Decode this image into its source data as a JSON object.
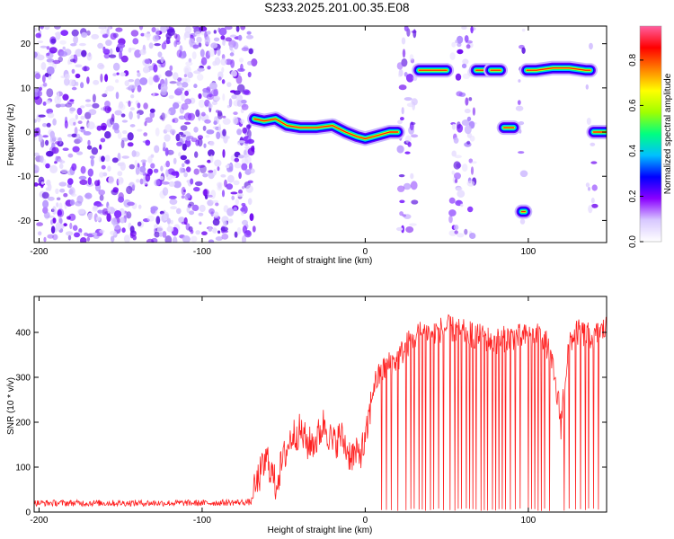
{
  "title": "S233.2025.201.00.35.E08",
  "chart_data": [
    {
      "type": "heatmap",
      "xlabel": "Height of straight line (km)",
      "ylabel": "Frequency (Hz)",
      "xlim": [
        -203,
        148
      ],
      "ylim": [
        -25,
        24
      ],
      "xticks": [
        -200,
        -100,
        0,
        100
      ],
      "yticks": [
        -20,
        -10,
        0,
        10,
        20
      ],
      "colorbar": {
        "label": "Normalized spectral amplitude",
        "ticks": [
          0.0,
          0.2,
          0.4,
          0.6,
          0.8
        ],
        "range": [
          0,
          0.95
        ],
        "colors": [
          "#ffffff",
          "#d8c8ff",
          "#8a00ff",
          "#0000ff",
          "#00c0ff",
          "#00ff80",
          "#a0ff00",
          "#ffff00",
          "#ff8000",
          "#ff0000",
          "#ff60a0"
        ]
      },
      "noise_regions": [
        {
          "x": [
            -203,
            -68
          ],
          "density": 0.9
        },
        {
          "x": [
            21,
            31
          ],
          "density": 0.6
        },
        {
          "x": [
            52,
            67
          ],
          "density": 0.6
        },
        {
          "x": [
            94,
            99
          ],
          "density": 0.3
        },
        {
          "x": [
            136,
            141
          ],
          "density": 0.3
        }
      ],
      "tracks": [
        {
          "x": [
            -68,
            -62,
            -55,
            -48,
            -40,
            -30,
            -20,
            -12,
            -5,
            0,
            5,
            10,
            15,
            20
          ],
          "y": [
            3,
            2.5,
            3,
            1.5,
            1,
            1,
            1.5,
            0,
            -1,
            -1.5,
            -1,
            -0.5,
            0,
            0
          ]
        },
        {
          "x": [
            33,
            36,
            40,
            45,
            50
          ],
          "y": [
            14,
            14,
            14,
            14,
            14
          ]
        },
        {
          "x": [
            68,
            72,
            76
          ],
          "y": [
            14,
            14,
            14
          ]
        },
        {
          "x": [
            77,
            80,
            83
          ],
          "y": [
            14,
            14,
            14
          ]
        },
        {
          "x": [
            85,
            88,
            91
          ],
          "y": [
            1,
            1,
            1
          ]
        },
        {
          "x": [
            96,
            97,
            98
          ],
          "y": [
            -18,
            -18,
            -18
          ]
        },
        {
          "x": [
            99,
            105,
            115,
            125,
            135,
            138
          ],
          "y": [
            14,
            14,
            14.5,
            14.5,
            14,
            14
          ]
        },
        {
          "x": [
            140,
            144,
            148
          ],
          "y": [
            0,
            0,
            0
          ]
        }
      ]
    },
    {
      "type": "line",
      "xlabel": "Height of straight line (km)",
      "ylabel": "SNR (10 * v/v)",
      "xlim": [
        -203,
        148
      ],
      "ylim": [
        0,
        480
      ],
      "xticks": [
        -200,
        -100,
        0,
        100
      ],
      "yticks": [
        0,
        100,
        200,
        300,
        400
      ],
      "color": "#ff2020",
      "series": [
        {
          "x": [
            -203,
            -150,
            -100,
            -70,
            -65,
            -60,
            -55,
            -50,
            -45,
            -40,
            -35,
            -30,
            -25,
            -20,
            -15,
            -10,
            -5,
            0,
            5,
            8,
            12,
            15,
            20,
            25,
            30,
            35,
            40,
            50,
            60,
            70,
            80,
            90,
            100,
            110,
            115,
            120,
            125,
            130,
            140,
            148
          ],
          "y": [
            20,
            20,
            20,
            22,
            80,
            120,
            60,
            120,
            170,
            180,
            150,
            160,
            200,
            150,
            170,
            130,
            125,
            150,
            280,
            300,
            320,
            330,
            340,
            370,
            390,
            400,
            400,
            410,
            400,
            390,
            380,
            390,
            390,
            390,
            320,
            200,
            380,
            400,
            390,
            410
          ]
        }
      ],
      "dropouts": [
        10,
        13,
        16,
        20,
        25,
        28,
        30,
        33,
        35,
        37,
        40,
        42,
        45,
        48,
        52,
        55,
        57,
        59,
        62,
        64,
        66,
        68,
        71,
        73,
        75,
        78,
        80,
        82,
        84,
        86,
        89,
        92,
        95,
        100,
        102,
        104,
        106,
        108,
        110,
        113,
        122,
        125,
        129,
        132,
        135,
        137,
        140,
        143
      ]
    }
  ]
}
